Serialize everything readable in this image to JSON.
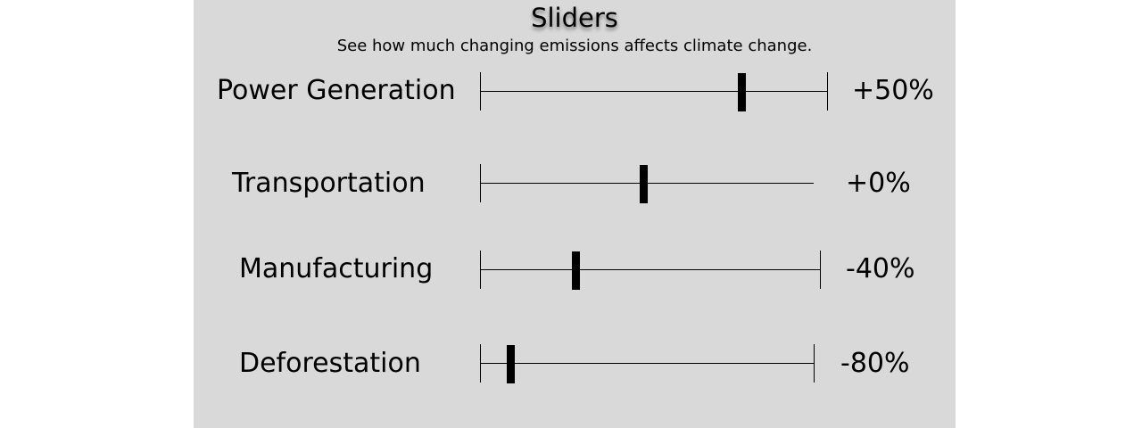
{
  "header": {
    "title": "Sliders",
    "subtitle": "See how much changing emissions affects climate change."
  },
  "sliders": [
    {
      "label": "Power Generation",
      "value_text": "+50%",
      "fraction": 0.75
    },
    {
      "label": "Transportation",
      "value_text": "+0%",
      "fraction": 0.49
    },
    {
      "label": "Manufacturing",
      "value_text": "-40%",
      "fraction": 0.28
    },
    {
      "label": "Deforestation",
      "value_text": "-80%",
      "fraction": 0.09
    }
  ],
  "colors": {
    "panel_background": "#d9d9d9",
    "page_background": "#ffffff",
    "track_color": "#000000"
  }
}
